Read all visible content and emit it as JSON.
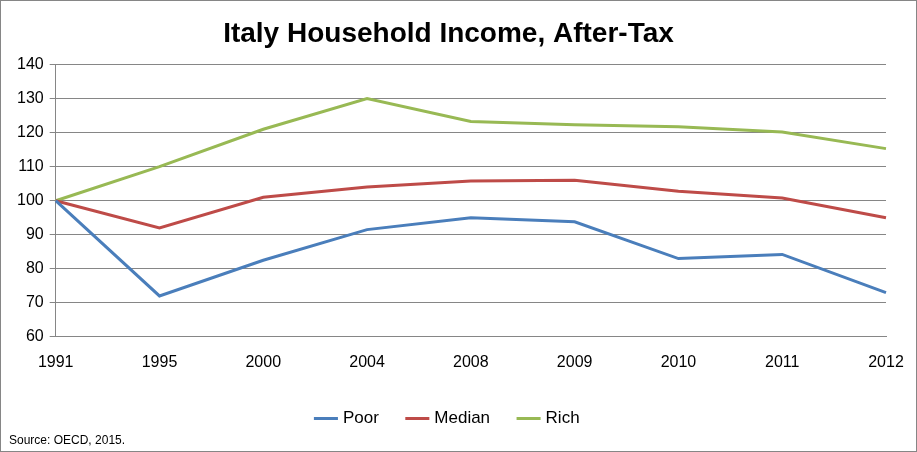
{
  "chart_data": {
    "type": "line",
    "title": "Italy Household Income, After-Tax",
    "annotations": [
      "Source: OECD, 2015."
    ],
    "categories": [
      "1991",
      "1995",
      "2000",
      "2004",
      "2008",
      "2009",
      "2010",
      "2011",
      "2012"
    ],
    "series": [
      {
        "name": "Poor",
        "color": "#4a7ebb",
        "values": [
          100,
          72,
          82.5,
          91.5,
          95,
          93.8,
          83,
          84.2,
          73
        ]
      },
      {
        "name": "Median",
        "color": "#be4b48",
        "values": [
          100,
          92,
          101,
          104,
          105.8,
          106,
          102.8,
          100.8,
          95
        ]
      },
      {
        "name": "Rich",
        "color": "#98b954",
        "values": [
          100,
          110,
          121,
          130,
          123.3,
          122.3,
          121.7,
          120.2,
          115.3
        ]
      }
    ],
    "ylim": [
      60,
      140
    ],
    "yticks": [
      60,
      70,
      80,
      90,
      100,
      110,
      120,
      130,
      140
    ],
    "grid": true,
    "legend": "bottom"
  }
}
